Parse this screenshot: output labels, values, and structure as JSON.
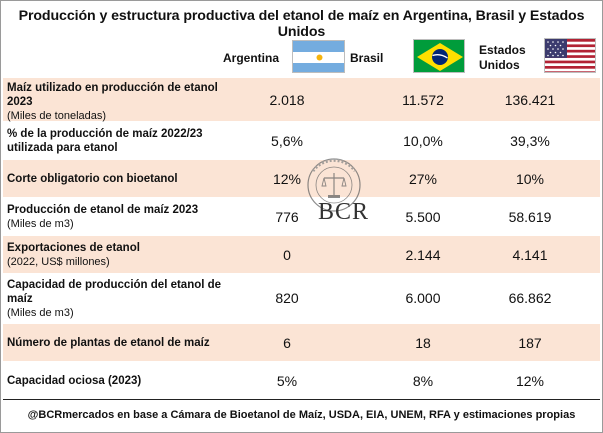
{
  "title": "Producción y estructura productiva del etanol de maíz en Argentina, Brasil y Estados Unidos",
  "columns": [
    {
      "label_line1": "Argentina",
      "label_line2": "",
      "flag": "argentina-flag"
    },
    {
      "label_line1": "Brasil",
      "label_line2": "",
      "flag": "brazil-flag"
    },
    {
      "label_line1": "Estados",
      "label_line2": "Unidos",
      "flag": "usa-flag"
    }
  ],
  "rows": [
    {
      "label_line1": "Maíz utilizado en producción de etanol",
      "label_line2": "2023",
      "sub": "(Miles de toneladas)",
      "values": [
        "2.018",
        "11.572",
        "136.421"
      ]
    },
    {
      "label_line1": "% de la producción de maíz 2022/23",
      "label_line2": "utilizada para etanol",
      "sub": "",
      "values": [
        "5,6%",
        "10,0%",
        "39,3%"
      ]
    },
    {
      "label_line1": "Corte obligatorio con bioetanol",
      "label_line2": "",
      "sub": "",
      "values": [
        "12%",
        "27%",
        "10%"
      ]
    },
    {
      "label_line1": "Producción de etanol de maíz 2023",
      "label_line2": "",
      "sub": "(Miles de m3)",
      "values": [
        "776",
        "5.500",
        "58.619"
      ]
    },
    {
      "label_line1": "Exportaciones de etanol",
      "label_line2": "",
      "sub": "(2022, US$ millones)",
      "values": [
        "0",
        "2.144",
        "4.141"
      ]
    },
    {
      "label_line1": "Capacidad de producción del etanol de",
      "label_line2": "maíz",
      "sub": "(Miles de m3)",
      "values": [
        "820",
        "6.000",
        "66.862"
      ]
    },
    {
      "label_line1": "Número de plantas de etanol de maíz",
      "label_line2": "",
      "sub": "",
      "values": [
        "6",
        "18",
        "187"
      ]
    },
    {
      "label_line1": "Capacidad ociosa (2023)",
      "label_line2": "",
      "sub": "",
      "values": [
        "5%",
        "8%",
        "12%"
      ]
    }
  ],
  "watermark": {
    "text": "BCR",
    "seal_text": "BOLSA DE COMERCIO DE ROSARIO"
  },
  "footer": "@BCRmercados en base a Cámara de Bioetanol de Maíz, USDA, EIA, UNEM, RFA y estimaciones propias",
  "colors": {
    "band": "#fbe4d5",
    "brazil_green": "#009c3b",
    "brazil_yellow": "#ffdf00",
    "brazil_blue": "#002776",
    "arg_blue": "#74acdf",
    "usa_red": "#b22234",
    "usa_blue": "#3c3b6e"
  }
}
